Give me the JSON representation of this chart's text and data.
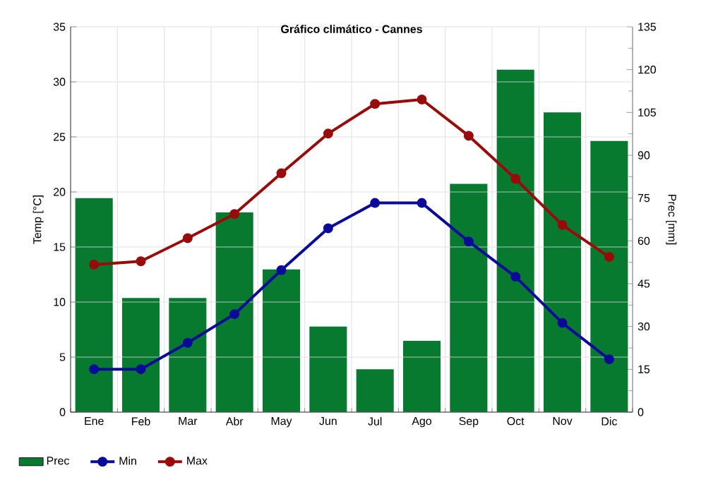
{
  "chart_data": {
    "type": "line",
    "title": "Gráfico climático - Cannes",
    "ylabel": "Temp [°C]",
    "y2label": "Prec [mm]",
    "categories": [
      "Ene",
      "Feb",
      "Mar",
      "Abr",
      "May",
      "Jun",
      "Jul",
      "Ago",
      "Sep",
      "Oct",
      "Nov",
      "Dic"
    ],
    "series": [
      {
        "name": "Prec",
        "type": "bar",
        "axis": "y2",
        "color": "#077a30",
        "values": [
          75,
          40,
          40,
          70,
          50,
          30,
          15,
          25,
          80,
          120,
          105,
          95
        ]
      },
      {
        "name": "Min",
        "color": "#0a0a9a",
        "values": [
          3.9,
          3.9,
          6.3,
          8.9,
          12.9,
          16.7,
          19.0,
          19.0,
          15.5,
          12.3,
          8.1,
          4.8
        ]
      },
      {
        "name": "Max",
        "color": "#990a0a",
        "values": [
          13.4,
          13.7,
          15.8,
          18.0,
          21.7,
          25.3,
          28.0,
          28.4,
          25.1,
          21.2,
          17.0,
          14.1
        ]
      }
    ],
    "ylim": [
      0,
      35
    ],
    "yticks": [
      0,
      5,
      10,
      15,
      20,
      25,
      30,
      35
    ],
    "y2lim": [
      0,
      135
    ],
    "y2ticks": [
      0,
      15,
      30,
      45,
      60,
      75,
      90,
      105,
      120,
      135
    ],
    "grid": true,
    "legend": "bottom",
    "marker": "circle",
    "line_style": "solid"
  }
}
